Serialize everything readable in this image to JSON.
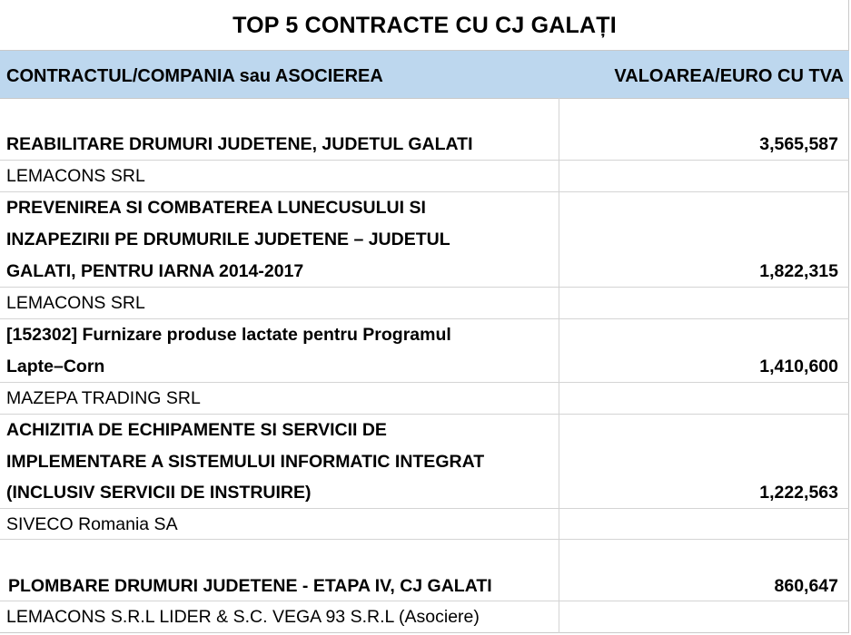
{
  "title": "TOP 5 CONTRACTE CU CJ GALAȚI",
  "headers": {
    "contract": "CONTRACTUL/COMPANIA sau ASOCIEREA",
    "value": "VALOAREA/EURO CU TVA"
  },
  "rows": [
    {
      "contract": "REABILITARE DRUMURI JUDETENE, JUDETUL GALATI",
      "value": "3,565,587",
      "company": "LEMACONS SRL"
    },
    {
      "contract_lines": [
        "PREVENIREA SI COMBATEREA LUNECUSULUI SI",
        "INZAPEZIRII PE DRUMURILE JUDETENE – JUDETUL",
        "GALATI, PENTRU IARNA 2014-2017"
      ],
      "value": "1,822,315",
      "company": "LEMACONS SRL"
    },
    {
      "contract_lines": [
        "[152302] Furnizare produse lactate pentru Programul",
        "Lapte–Corn"
      ],
      "value": "1,410,600",
      "company": "MAZEPA TRADING SRL"
    },
    {
      "contract_lines": [
        "ACHIZITIA DE ECHIPAMENTE SI SERVICII DE",
        "IMPLEMENTARE A SISTEMULUI INFORMATIC INTEGRAT",
        "(INCLUSIV SERVICII DE INSTRUIRE)"
      ],
      "value": "1,222,563",
      "company": "SIVECO Romania SA"
    },
    {
      "contract": "PLOMBARE DRUMURI JUDETENE - ETAPA IV, CJ GALATI",
      "value": "860,647",
      "company": "LEMACONS S.R.L LIDER & S.C. VEGA 93 S.R.L (Asociere)"
    }
  ]
}
